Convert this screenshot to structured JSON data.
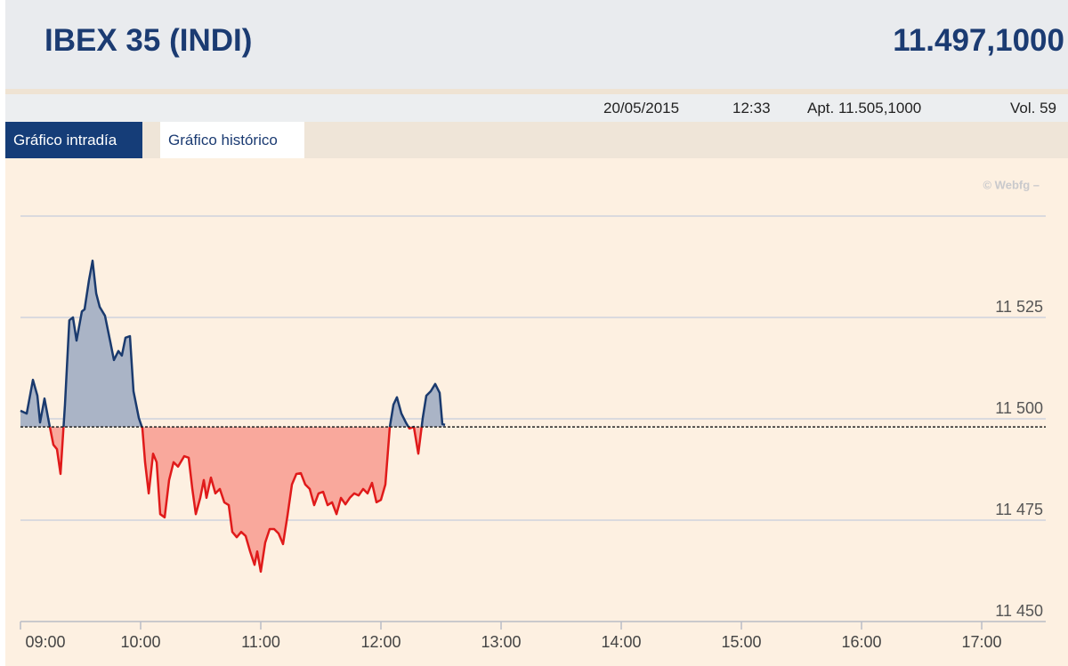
{
  "header": {
    "title": "IBEX 35 (INDI)",
    "value": "11.497,1000"
  },
  "info": {
    "date": "20/05/2015",
    "time": "12:33",
    "open": "Apt. 11.505,1000",
    "volume": "Vol. 59"
  },
  "tabs": [
    "Gráfico intradía",
    "Gráfico histórico"
  ],
  "chart_data": {
    "type": "area-baseline",
    "watermark": "© Webfg –",
    "x": [
      9.0,
      9.052,
      9.104,
      9.141,
      9.163,
      9.2,
      9.237,
      9.274,
      9.304,
      9.333,
      9.37,
      9.407,
      9.437,
      9.467,
      9.511,
      9.533,
      9.57,
      9.6,
      9.63,
      9.659,
      9.704,
      9.748,
      9.778,
      9.815,
      9.844,
      9.874,
      9.911,
      9.941,
      9.985,
      10.015,
      10.037,
      10.067,
      10.104,
      10.133,
      10.163,
      10.2,
      10.237,
      10.274,
      10.311,
      10.363,
      10.4,
      10.43,
      10.459,
      10.496,
      10.526,
      10.548,
      10.585,
      10.622,
      10.659,
      10.696,
      10.733,
      10.763,
      10.8,
      10.837,
      10.874,
      10.911,
      10.948,
      10.97,
      11.0,
      11.037,
      11.074,
      11.111,
      11.148,
      11.185,
      11.222,
      11.259,
      11.296,
      11.333,
      11.37,
      11.407,
      11.444,
      11.481,
      11.519,
      11.556,
      11.593,
      11.63,
      11.667,
      11.704,
      11.741,
      11.778,
      11.815,
      11.852,
      11.889,
      11.926,
      11.963,
      12.0,
      12.037,
      12.074,
      12.104,
      12.133,
      12.17,
      12.207,
      12.237,
      12.274,
      12.311,
      12.348,
      12.378,
      12.415,
      12.452,
      12.489,
      12.511,
      12.533
    ],
    "values": [
      11502.0,
      11501.3,
      11509.6,
      11505.7,
      11499.1,
      11505.0,
      11499.1,
      11493.6,
      11492.5,
      11486.4,
      11503.5,
      11524.3,
      11525.0,
      11519.3,
      11526.5,
      11527.0,
      11534.2,
      11539.0,
      11530.9,
      11527.6,
      11525.4,
      11518.9,
      11514.5,
      11516.7,
      11515.6,
      11520.0,
      11520.4,
      11506.8,
      11500.2,
      11497.6,
      11489.3,
      11481.6,
      11491.4,
      11489.3,
      11476.5,
      11475.7,
      11484.9,
      11489.3,
      11488.2,
      11490.8,
      11490.4,
      11482.7,
      11476.5,
      11480.5,
      11484.9,
      11480.5,
      11485.5,
      11481.6,
      11482.7,
      11479.4,
      11478.7,
      11472.1,
      11470.8,
      11472.1,
      11471.1,
      11467.3,
      11464.0,
      11467.3,
      11462.3,
      11469.5,
      11472.8,
      11472.8,
      11471.7,
      11469.1,
      11476.1,
      11483.8,
      11486.4,
      11486.6,
      11483.8,
      11482.7,
      11478.7,
      11481.6,
      11482.0,
      11478.7,
      11479.4,
      11476.5,
      11480.5,
      11478.9,
      11480.5,
      11481.6,
      11481.1,
      11482.7,
      11481.6,
      11484.2,
      11479.4,
      11480.0,
      11483.8,
      11498.0,
      11503.5,
      11505.3,
      11501.3,
      11499.1,
      11497.6,
      11498.0,
      11491.4,
      11500.2,
      11505.7,
      11506.8,
      11508.6,
      11506.4,
      11498.7,
      11498.5
    ],
    "baseline": 11498.0,
    "up_color": "#1a3a6e",
    "up_fill": "#aab4c6",
    "down_color": "#e01a1a",
    "down_fill": "#f9a89c",
    "xlim": [
      9,
      17.533
    ],
    "ylim": [
      11450,
      11550
    ],
    "xticks": [
      {
        "value": 9,
        "label": "09:00"
      },
      {
        "value": 10,
        "label": "10:00"
      },
      {
        "value": 11,
        "label": "11:00"
      },
      {
        "value": 12,
        "label": "12:00"
      },
      {
        "value": 13,
        "label": "13:00"
      },
      {
        "value": 14,
        "label": "14:00"
      },
      {
        "value": 15,
        "label": "15:00"
      },
      {
        "value": 16,
        "label": "16:00"
      },
      {
        "value": 17,
        "label": "17:00"
      }
    ],
    "yticks": [
      {
        "value": 11450,
        "label": "11 450"
      },
      {
        "value": 11475,
        "label": "11 475"
      },
      {
        "value": 11500,
        "label": "11 500"
      },
      {
        "value": 11525,
        "label": "11 525"
      }
    ],
    "grid": true
  }
}
